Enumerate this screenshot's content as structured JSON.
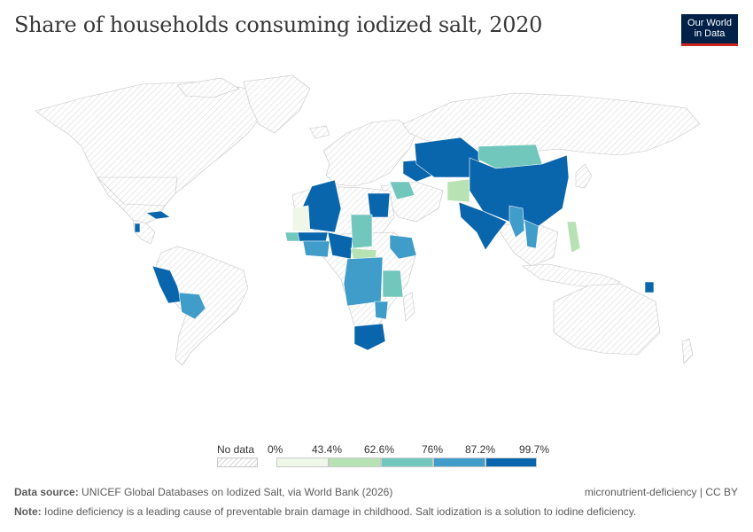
{
  "title": "Share of households consuming iodized salt, 2020",
  "logo": {
    "line1": "Our World",
    "line2": "in Data"
  },
  "legend": {
    "no_data_label": "No data",
    "bins": [
      {
        "from": "0%",
        "color": "#eff8e8"
      },
      {
        "from": "43.4%",
        "color": "#b7e2b4"
      },
      {
        "from": "62.6%",
        "color": "#72c7bd"
      },
      {
        "from": "76%",
        "color": "#409cc8"
      },
      {
        "from": "87.2%",
        "color": "#0a66ac"
      }
    ],
    "end_label": "99.7%"
  },
  "colors": {
    "no_data": "#f2f2f2",
    "border": "#c7c7c7"
  },
  "footer": {
    "source_label": "Data source:",
    "source_text": "UNICEF Global Databases on Iodized Salt, via World Bank (2026)",
    "right_text": "micronutrient-deficiency | CC BY",
    "note_label": "Note:",
    "note_text": "Iodine deficiency is a leading cause of preventable brain damage in childhood. Salt iodization is a solution to iodine deficiency."
  }
}
